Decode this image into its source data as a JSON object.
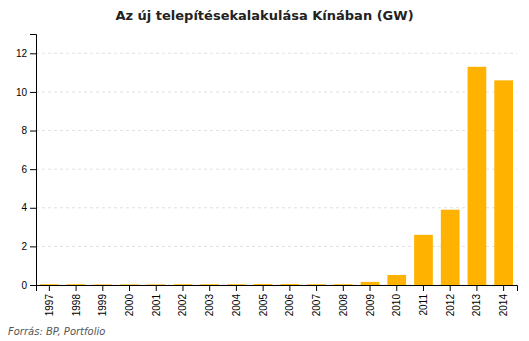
{
  "chart_data": {
    "type": "bar",
    "title": "Az új telepítésekalakulása Kínában (GW)",
    "annotations": [
      "Forrás: BP, Portfolio"
    ],
    "categories": [
      "1997",
      "1998",
      "1999",
      "2000",
      "2001",
      "2002",
      "2003",
      "2004",
      "2005",
      "2006",
      "2007",
      "2008",
      "2009",
      "2010",
      "2011",
      "2012",
      "2013",
      "2014"
    ],
    "values": [
      0.04,
      0.04,
      0.03,
      0.03,
      0.03,
      0.04,
      0.04,
      0.04,
      0.05,
      0.05,
      0.04,
      0.04,
      0.16,
      0.52,
      2.6,
      3.9,
      11.3,
      10.6
    ],
    "color": "#FFB300",
    "ylim": [
      0,
      13
    ],
    "yticks": [
      0,
      2,
      4,
      6,
      8,
      10,
      12
    ],
    "grid": true
  }
}
